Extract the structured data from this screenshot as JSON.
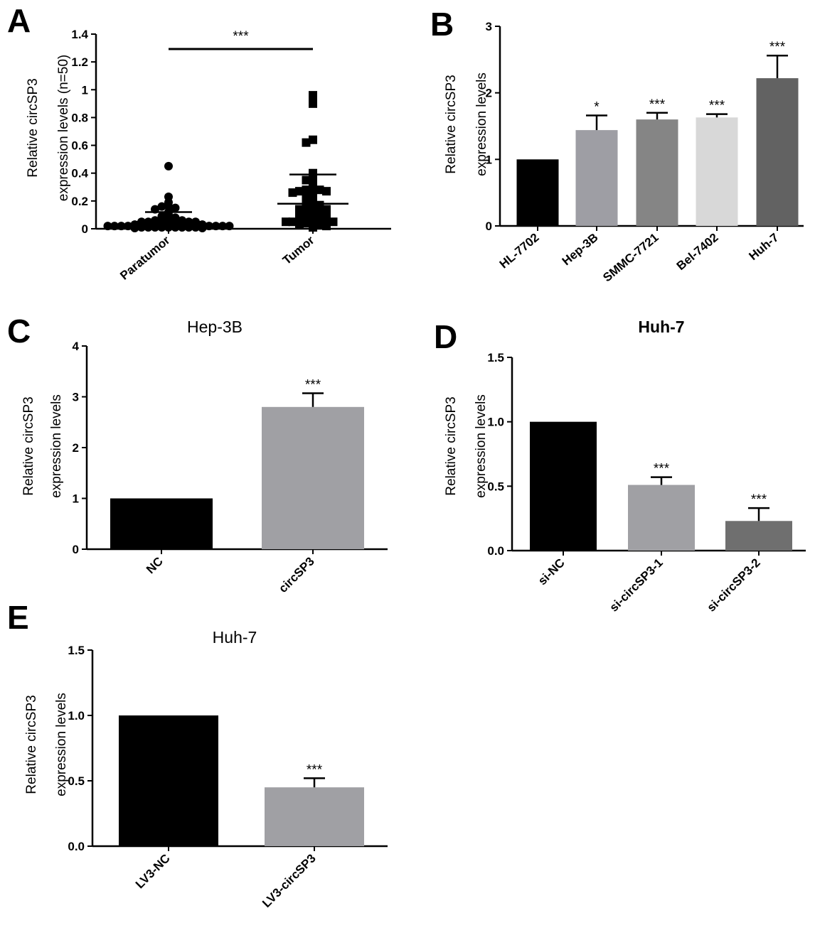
{
  "chart_data": [
    {
      "panel": "A",
      "type": "scatter",
      "title": "",
      "ylabel": "Relative circSP3\nexpression levels (n=50)",
      "ylim": [
        0,
        1.4
      ],
      "yticks": [
        "0",
        "0.2",
        "0.4",
        "0.6",
        "0.8",
        "1",
        "1.2",
        "1.4"
      ],
      "categories": [
        "Paratumor",
        "Tumor"
      ],
      "series": [
        {
          "category": "Paratumor",
          "marker": "circle",
          "values": [
            0.45,
            0.23,
            0.19,
            0.16,
            0.16,
            0.15,
            0.14,
            0.12,
            0.1,
            0.09,
            0.08,
            0.07,
            0.07,
            0.06,
            0.06,
            0.06,
            0.05,
            0.05,
            0.05,
            0.05,
            0.04,
            0.04,
            0.04,
            0.04,
            0.04,
            0.03,
            0.03,
            0.03,
            0.03,
            0.03,
            0.03,
            0.02,
            0.02,
            0.02,
            0.02,
            0.02,
            0.02,
            0.02,
            0.02,
            0.01,
            0.01,
            0.01,
            0.01,
            0.01,
            0.01,
            0.01,
            0.01,
            0.01,
            0.005,
            0.005
          ],
          "mean": 0.05,
          "sd_upper": 0.12
        },
        {
          "category": "Tumor",
          "marker": "square",
          "values": [
            0.96,
            0.9,
            0.64,
            0.62,
            0.4,
            0.37,
            0.35,
            0.33,
            0.3,
            0.28,
            0.28,
            0.28,
            0.27,
            0.27,
            0.26,
            0.25,
            0.24,
            0.22,
            0.2,
            0.19,
            0.18,
            0.17,
            0.16,
            0.15,
            0.15,
            0.14,
            0.14,
            0.13,
            0.12,
            0.12,
            0.11,
            0.1,
            0.09,
            0.09,
            0.08,
            0.08,
            0.07,
            0.07,
            0.07,
            0.06,
            0.06,
            0.05,
            0.05,
            0.05,
            0.04,
            0.04,
            0.03,
            0.03,
            0.02,
            0.01
          ],
          "mean": 0.18,
          "sd_upper": 0.39
        }
      ],
      "significance": [
        {
          "between": [
            "Paratumor",
            "Tumor"
          ],
          "label": "***"
        }
      ]
    },
    {
      "panel": "B",
      "type": "bar",
      "title": "",
      "ylabel": "Relative circSP3\nexpression levels",
      "ylim": [
        0,
        3
      ],
      "yticks": [
        "0",
        "1",
        "2",
        "3"
      ],
      "categories": [
        "HL-7702",
        "Hep-3B",
        "SMMC-7721",
        "Bel-7402",
        "Huh-7"
      ],
      "values": [
        1.0,
        1.44,
        1.6,
        1.63,
        2.22
      ],
      "errors": [
        0,
        0.22,
        0.1,
        0.05,
        0.34
      ],
      "colors": [
        "#000000",
        "#9e9ea4",
        "#858585",
        "#d8d8d8",
        "#626262"
      ],
      "significance": [
        "",
        "*",
        "***",
        "***",
        "***"
      ]
    },
    {
      "panel": "C",
      "type": "bar",
      "title": "Hep-3B",
      "ylabel": "Relative circSP3\nexpression levels",
      "ylim": [
        0,
        4
      ],
      "yticks": [
        "0",
        "1",
        "2",
        "3",
        "4"
      ],
      "categories": [
        "NC",
        "circSP3"
      ],
      "values": [
        1.0,
        2.8
      ],
      "errors": [
        0,
        0.27
      ],
      "colors": [
        "#000000",
        "#a0a0a4"
      ],
      "significance": [
        "",
        "***"
      ]
    },
    {
      "panel": "D",
      "type": "bar",
      "title": "Huh-7",
      "ylabel": "Relative circSP3\nexpression levels",
      "ylim": [
        0,
        1.5
      ],
      "yticks": [
        "0.0",
        "0.5",
        "1.0",
        "1.5"
      ],
      "categories": [
        "si-NC",
        "si-circSP3-1",
        "si-circSP3-2"
      ],
      "values": [
        1.0,
        0.51,
        0.23
      ],
      "errors": [
        0,
        0.06,
        0.1
      ],
      "colors": [
        "#000000",
        "#a0a0a4",
        "#6f6f6f"
      ],
      "significance": [
        "",
        "***",
        "***"
      ]
    },
    {
      "panel": "E",
      "type": "bar",
      "title": "Huh-7",
      "ylabel": "Relative circSP3\nexpression levels",
      "ylim": [
        0,
        1.5
      ],
      "yticks": [
        "0.0",
        "0.5",
        "1.0",
        "1.5"
      ],
      "categories": [
        "LV3-NC",
        "LV3-circSP3"
      ],
      "values": [
        1.0,
        0.45
      ],
      "errors": [
        0,
        0.07
      ],
      "colors": [
        "#000000",
        "#a0a0a4"
      ],
      "significance": [
        "",
        "***"
      ]
    }
  ]
}
